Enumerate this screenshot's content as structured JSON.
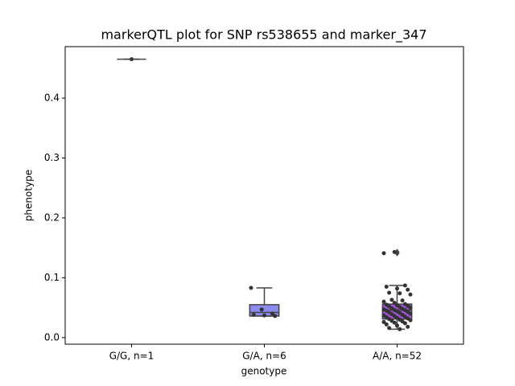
{
  "chart_data": {
    "type": "box",
    "title": "markerQTL plot for SNP rs538655 and marker_347",
    "x_label": "genotype",
    "y_label": "phenotype",
    "categories": [
      "G/G, n=1",
      "G/A, n=6",
      "A/A, n=52"
    ],
    "colors": [
      "#e8544e",
      "#8c8cf0",
      "#a352e0"
    ],
    "boxes": [
      {
        "whislo": 0.465,
        "q1": 0.465,
        "med": 0.465,
        "q3": 0.465,
        "whishi": 0.465,
        "fliers": [],
        "points": [
          0.465
        ]
      },
      {
        "whislo": 0.036,
        "q1": 0.036,
        "med": 0.042,
        "q3": 0.055,
        "whishi": 0.083,
        "fliers": [],
        "points": [
          0.083,
          0.047,
          0.04,
          0.038,
          0.037,
          0.036
        ]
      },
      {
        "whislo": 0.014,
        "q1": 0.031,
        "med": 0.046,
        "q3": 0.056,
        "whishi": 0.087,
        "fliers": [
          0.141,
          0.143
        ],
        "points": [
          0.141,
          0.143,
          0.087,
          0.085,
          0.082,
          0.08,
          0.075,
          0.074,
          0.072,
          0.063,
          0.062,
          0.06,
          0.058,
          0.056,
          0.055,
          0.054,
          0.053,
          0.052,
          0.051,
          0.05,
          0.049,
          0.048,
          0.047,
          0.046,
          0.046,
          0.045,
          0.044,
          0.043,
          0.042,
          0.041,
          0.04,
          0.039,
          0.038,
          0.037,
          0.036,
          0.035,
          0.034,
          0.033,
          0.032,
          0.031,
          0.03,
          0.029,
          0.028,
          0.027,
          0.026,
          0.025,
          0.024,
          0.022,
          0.02,
          0.018,
          0.016,
          0.014
        ]
      }
    ],
    "ylim": [
      -0.011,
      0.486
    ],
    "yticks": [
      {
        "value": 0,
        "label": "0.0"
      },
      0.1,
      0.2,
      0.3,
      0.4
    ]
  }
}
